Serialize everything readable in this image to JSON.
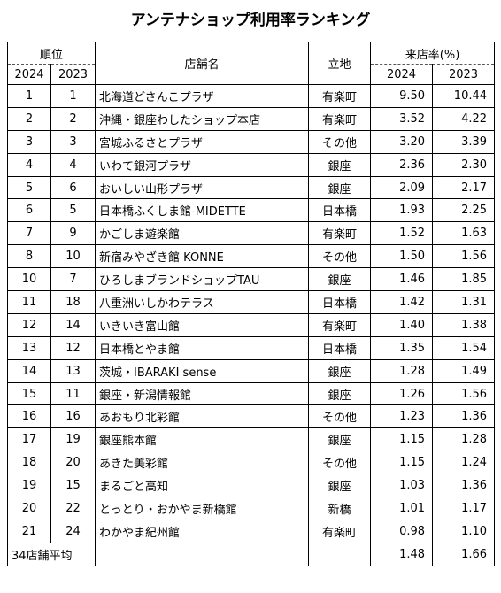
{
  "title": "アンテナショップ利用率ランキング",
  "header": {
    "rank": "順位",
    "year_a": "2024",
    "year_b": "2023",
    "store": "店舗名",
    "location": "立地",
    "rate": "来店率(%)",
    "rate_year_a": "2024",
    "rate_year_b": "2023"
  },
  "rows": [
    {
      "r2024": "1",
      "r2023": "1",
      "name": "北海道どさんこプラザ",
      "loc": "有楽町",
      "v2024": "9.50",
      "v2023": "10.44"
    },
    {
      "r2024": "2",
      "r2023": "2",
      "name": "沖縄・銀座わしたショップ本店",
      "loc": "有楽町",
      "v2024": "3.52",
      "v2023": "4.22"
    },
    {
      "r2024": "3",
      "r2023": "3",
      "name": "宮城ふるさとプラザ",
      "loc": "その他",
      "v2024": "3.20",
      "v2023": "3.39"
    },
    {
      "r2024": "4",
      "r2023": "4",
      "name": "いわて銀河プラザ",
      "loc": "銀座",
      "v2024": "2.36",
      "v2023": "2.30"
    },
    {
      "r2024": "5",
      "r2023": "6",
      "name": "おいしい山形プラザ",
      "loc": "銀座",
      "v2024": "2.09",
      "v2023": "2.17"
    },
    {
      "r2024": "6",
      "r2023": "5",
      "name": "日本橋ふくしま館-MIDETTE",
      "loc": "日本橋",
      "v2024": "1.93",
      "v2023": "2.25"
    },
    {
      "r2024": "7",
      "r2023": "9",
      "name": "かごしま遊楽館",
      "loc": "有楽町",
      "v2024": "1.52",
      "v2023": "1.63"
    },
    {
      "r2024": "8",
      "r2023": "10",
      "name": "新宿みやざき館 KONNE",
      "loc": "その他",
      "v2024": "1.50",
      "v2023": "1.56"
    },
    {
      "r2024": "10",
      "r2023": "7",
      "name": "ひろしまブランドショップTAU",
      "loc": "銀座",
      "v2024": "1.46",
      "v2023": "1.85"
    },
    {
      "r2024": "11",
      "r2023": "18",
      "name": "八重洲いしかわテラス",
      "loc": "日本橋",
      "v2024": "1.42",
      "v2023": "1.31"
    },
    {
      "r2024": "12",
      "r2023": "14",
      "name": "いきいき富山館",
      "loc": "有楽町",
      "v2024": "1.40",
      "v2023": "1.38"
    },
    {
      "r2024": "13",
      "r2023": "12",
      "name": "日本橋とやま館",
      "loc": "日本橋",
      "v2024": "1.35",
      "v2023": "1.54"
    },
    {
      "r2024": "14",
      "r2023": "13",
      "name": "茨城・IBARAKI sense",
      "loc": "銀座",
      "v2024": "1.28",
      "v2023": "1.49"
    },
    {
      "r2024": "15",
      "r2023": "11",
      "name": "銀座・新潟情報館",
      "loc": "銀座",
      "v2024": "1.26",
      "v2023": "1.56"
    },
    {
      "r2024": "16",
      "r2023": "16",
      "name": "あおもり北彩館",
      "loc": "その他",
      "v2024": "1.23",
      "v2023": "1.36"
    },
    {
      "r2024": "17",
      "r2023": "19",
      "name": "銀座熊本館",
      "loc": "銀座",
      "v2024": "1.15",
      "v2023": "1.28"
    },
    {
      "r2024": "18",
      "r2023": "20",
      "name": "あきた美彩館",
      "loc": "その他",
      "v2024": "1.15",
      "v2023": "1.24"
    },
    {
      "r2024": "19",
      "r2023": "15",
      "name": "まるごと高知",
      "loc": "銀座",
      "v2024": "1.03",
      "v2023": "1.36"
    },
    {
      "r2024": "20",
      "r2023": "22",
      "name": "とっとり・おかやま新橋館",
      "loc": "新橋",
      "v2024": "1.01",
      "v2023": "1.17"
    },
    {
      "r2024": "21",
      "r2023": "24",
      "name": "わかやま紀州館",
      "loc": "有楽町",
      "v2024": "0.98",
      "v2023": "1.10"
    }
  ],
  "average": {
    "label": "34店舗平均",
    "v2024": "1.48",
    "v2023": "1.66"
  }
}
